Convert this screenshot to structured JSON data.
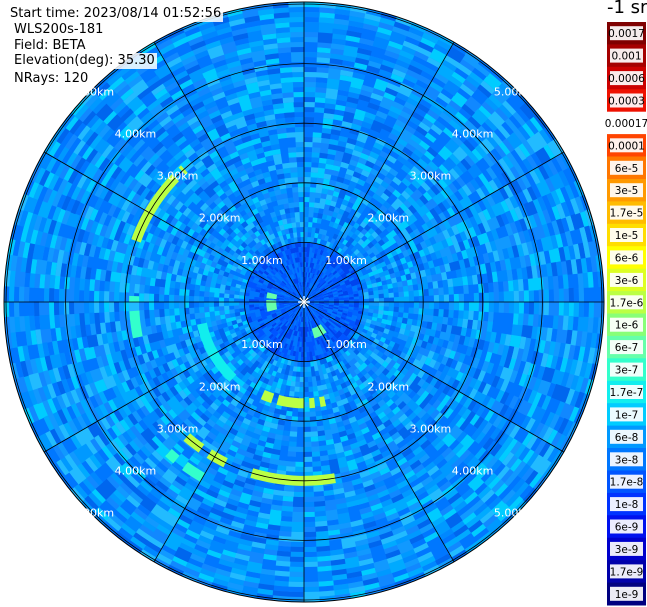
{
  "chart_data": {
    "type": "heatmap",
    "projection": "polar-ppi",
    "info": {
      "start_time": "Start time: 2023/08/14 01:52:56",
      "instrument": "WLS200s-181",
      "field": "Field: BETA",
      "elevation": "Elevation(deg): 35.30",
      "nrays": "NRays: 120"
    },
    "units_label": "-1 sr",
    "range_rings_km": [
      1,
      2,
      3,
      4,
      5
    ],
    "ring_labels": [
      "1.00km",
      "2.00km",
      "3.00km",
      "4.00km",
      "5.00km"
    ],
    "max_range_km": 5.1,
    "azimuth_lines_deg": [
      0,
      30,
      60,
      90,
      120,
      150,
      180,
      210,
      240,
      270,
      300,
      330
    ],
    "colorbar_labels": [
      "0.0017",
      "0.001",
      "0.0006",
      "0.0003",
      "0.00017",
      "0.0001",
      "6e-5",
      "3e-5",
      "1.7e-5",
      "1e-5",
      "6e-6",
      "3e-6",
      "1.7e-6",
      "1e-6",
      "6e-7",
      "3e-7",
      "1.7e-7",
      "1e-7",
      "6e-8",
      "3e-8",
      "1.7e-8",
      "1e-8",
      "6e-9",
      "3e-9",
      "1.7e-9",
      "1e-9"
    ],
    "colorbar_colors": [
      "#7f0000",
      "#a50000",
      "#cc0000",
      "#ee1100",
      "#ffffff",
      "#ff4400",
      "#ff7700",
      "#ff9900",
      "#ffbb00",
      "#ffdd00",
      "#ffff00",
      "#ddff22",
      "#bbff44",
      "#88ff77",
      "#66ffaa",
      "#33ffcc",
      "#11eeee",
      "#00ccff",
      "#0099ff",
      "#0077ff",
      "#0055ff",
      "#0033ff",
      "#0011ee",
      "#0000cc",
      "#0000aa",
      "#000080"
    ],
    "colorbar_text_colors": [
      "#ffffff",
      "#ffffff",
      "#ffffff",
      "#ffffff",
      "#000000",
      "#000000",
      "#000000",
      "#000000",
      "#000000",
      "#000000",
      "#000000",
      "#000000",
      "#000000",
      "#000000",
      "#000000",
      "#000000",
      "#000000",
      "#000000",
      "#000000",
      "#000000",
      "#000000",
      "#ffffff",
      "#ffffff",
      "#ffffff",
      "#ffffff",
      "#ffffff"
    ],
    "features": [
      {
        "kind": "arc",
        "r_km": 3.0,
        "az_from": 290,
        "az_to": 318,
        "level": "1.7e-6"
      },
      {
        "kind": "arc",
        "r_km": 2.85,
        "az_from": 258,
        "az_to": 272,
        "level": "3e-7"
      },
      {
        "kind": "arc",
        "r_km": 1.75,
        "az_from": 220,
        "az_to": 258,
        "level": "1.7e-7"
      },
      {
        "kind": "arc",
        "r_km": 1.7,
        "az_from": 168,
        "az_to": 205,
        "level": "1.7e-6"
      },
      {
        "kind": "arc",
        "r_km": 0.55,
        "az_from": 140,
        "az_to": 165,
        "level": "6e-7"
      },
      {
        "kind": "arc",
        "r_km": 0.55,
        "az_from": 255,
        "az_to": 285,
        "level": "6e-7"
      },
      {
        "kind": "arc",
        "r_km": 3.0,
        "az_from": 170,
        "az_to": 225,
        "level": "1.7e-6"
      },
      {
        "kind": "arc",
        "r_km": 3.4,
        "az_from": 210,
        "az_to": 222,
        "level": "3e-7"
      }
    ]
  }
}
